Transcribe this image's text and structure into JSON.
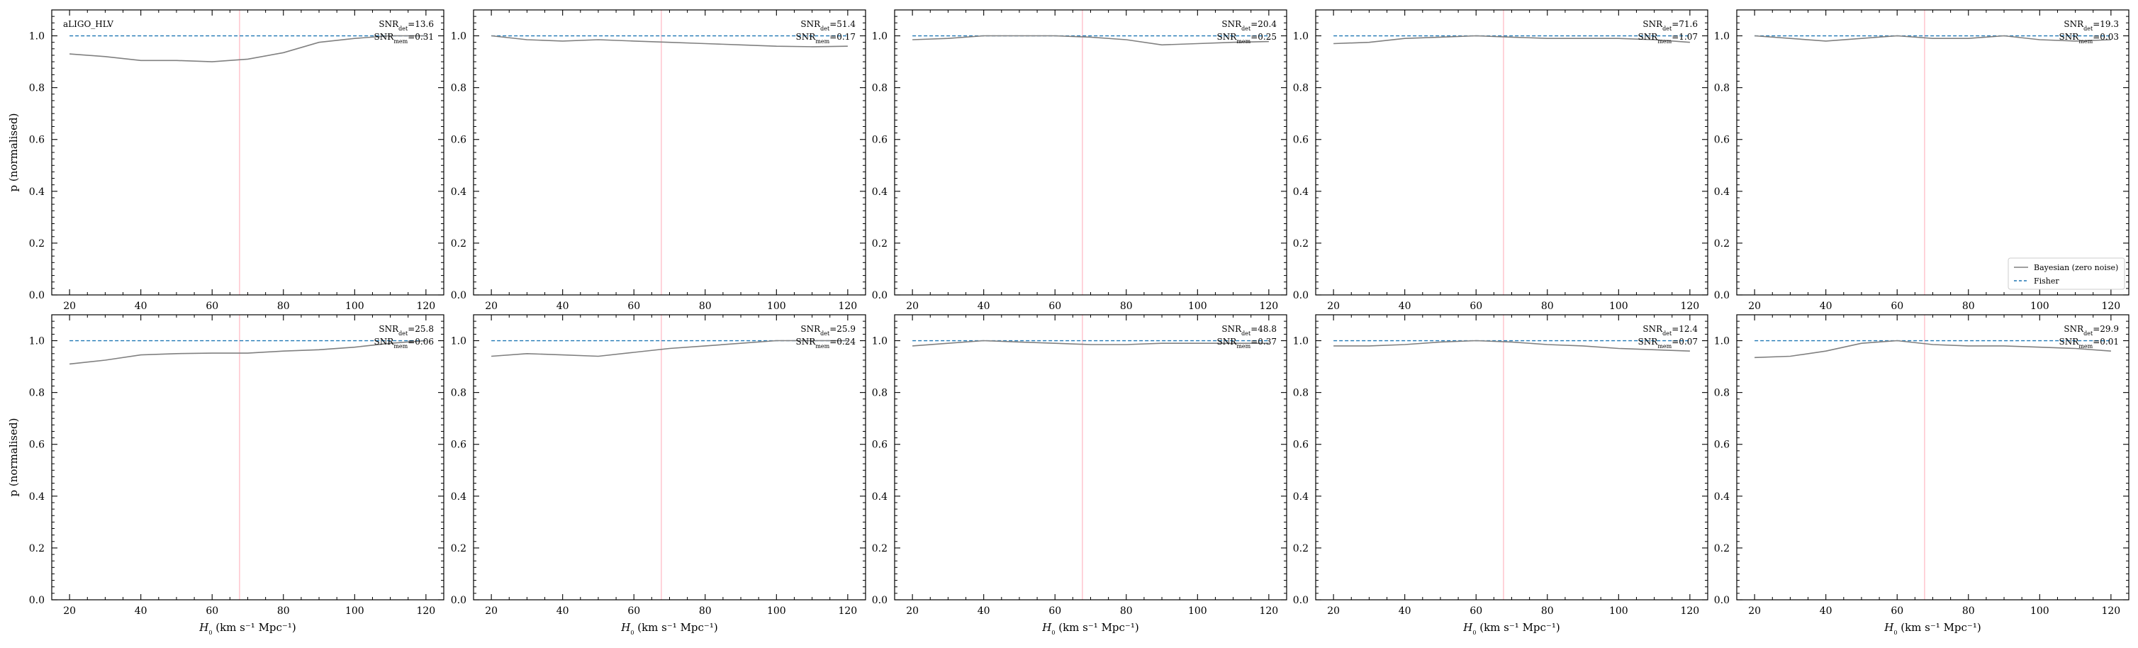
{
  "figure": {
    "detector_label": "aLIGO_HLV",
    "ylabel": "p (normalised)",
    "xlabel_prefix": "H",
    "xlabel_sub": "0",
    "xlabel_suffix": " (km s⁻¹ Mpc⁻¹)",
    "snr_det_prefix": "SNR",
    "snr_det_sub": "det",
    "snr_mem_prefix": "SNR",
    "snr_mem_sub": "mem",
    "legend": [
      "Bayesian (zero noise)",
      "Fisher"
    ],
    "colors": {
      "bayes": "#808080",
      "fisher": "#1f77b4",
      "truth": "#ffb6c1"
    }
  },
  "chart_data": [
    {
      "type": "line",
      "snr_det": "13.6",
      "snr_mem": "0.31",
      "x": [
        20,
        30,
        40,
        50,
        60,
        70,
        80,
        90,
        100,
        110,
        120
      ],
      "bayes": [
        0.93,
        0.92,
        0.905,
        0.905,
        0.9,
        0.91,
        0.935,
        0.975,
        0.99,
        1.0,
        1.0
      ],
      "fisher": 1.0,
      "truth_h0": 67.7,
      "xlim": [
        15,
        125
      ],
      "ylim": [
        0,
        1.1
      ],
      "xticks": [
        20,
        40,
        60,
        80,
        100,
        120
      ],
      "yticks": [
        0.0,
        0.2,
        0.4,
        0.6,
        0.8,
        1.0
      ]
    },
    {
      "type": "line",
      "snr_det": "51.4",
      "snr_mem": "0.17",
      "x": [
        20,
        30,
        40,
        50,
        60,
        70,
        80,
        90,
        100,
        110,
        120
      ],
      "bayes": [
        1.0,
        0.985,
        0.98,
        0.985,
        0.98,
        0.975,
        0.97,
        0.965,
        0.96,
        0.958,
        0.96
      ],
      "fisher": 1.0,
      "truth_h0": 67.7,
      "xlim": [
        15,
        125
      ],
      "ylim": [
        0,
        1.1
      ],
      "xticks": [
        20,
        40,
        60,
        80,
        100,
        120
      ],
      "yticks": [
        0.0,
        0.2,
        0.4,
        0.6,
        0.8,
        1.0
      ]
    },
    {
      "type": "line",
      "snr_det": "20.4",
      "snr_mem": "0.25",
      "x": [
        20,
        30,
        40,
        50,
        60,
        70,
        80,
        90,
        100,
        110,
        120
      ],
      "bayes": [
        0.985,
        0.99,
        1.0,
        1.0,
        1.0,
        0.995,
        0.985,
        0.965,
        0.97,
        0.975,
        0.978
      ],
      "fisher": 1.0,
      "truth_h0": 67.7,
      "xlim": [
        15,
        125
      ],
      "ylim": [
        0,
        1.1
      ],
      "xticks": [
        20,
        40,
        60,
        80,
        100,
        120
      ],
      "yticks": [
        0.0,
        0.2,
        0.4,
        0.6,
        0.8,
        1.0
      ]
    },
    {
      "type": "line",
      "snr_det": "71.6",
      "snr_mem": "1.07",
      "x": [
        20,
        30,
        40,
        50,
        60,
        70,
        80,
        90,
        100,
        110,
        120
      ],
      "bayes": [
        0.97,
        0.975,
        0.99,
        0.995,
        1.0,
        0.995,
        0.99,
        0.99,
        0.99,
        0.985,
        0.975
      ],
      "fisher": 1.0,
      "truth_h0": 67.7,
      "xlim": [
        15,
        125
      ],
      "ylim": [
        0,
        1.1
      ],
      "xticks": [
        20,
        40,
        60,
        80,
        100,
        120
      ],
      "yticks": [
        0.0,
        0.2,
        0.4,
        0.6,
        0.8,
        1.0
      ]
    },
    {
      "type": "line",
      "snr_det": "19.3",
      "snr_mem": "0.03",
      "x": [
        20,
        30,
        40,
        50,
        60,
        70,
        80,
        90,
        100,
        110,
        120
      ],
      "bayes": [
        1.0,
        0.99,
        0.98,
        0.99,
        1.0,
        0.99,
        0.99,
        1.0,
        0.985,
        0.98,
        0.985
      ],
      "fisher": 1.0,
      "truth_h0": 67.7,
      "xlim": [
        15,
        125
      ],
      "ylim": [
        0,
        1.1
      ],
      "xticks": [
        20,
        40,
        60,
        80,
        100,
        120
      ],
      "yticks": [
        0.0,
        0.2,
        0.4,
        0.6,
        0.8,
        1.0
      ]
    },
    {
      "type": "line",
      "snr_det": "25.8",
      "snr_mem": "0.06",
      "x": [
        20,
        30,
        40,
        50,
        60,
        70,
        80,
        90,
        100,
        110,
        120
      ],
      "bayes": [
        0.91,
        0.925,
        0.945,
        0.95,
        0.952,
        0.952,
        0.96,
        0.965,
        0.975,
        0.99,
        1.0
      ],
      "fisher": 1.0,
      "truth_h0": 67.7,
      "xlim": [
        15,
        125
      ],
      "ylim": [
        0,
        1.1
      ],
      "xticks": [
        20,
        40,
        60,
        80,
        100,
        120
      ],
      "yticks": [
        0.0,
        0.2,
        0.4,
        0.6,
        0.8,
        1.0
      ]
    },
    {
      "type": "line",
      "snr_det": "25.9",
      "snr_mem": "0.24",
      "x": [
        20,
        30,
        40,
        50,
        60,
        70,
        80,
        90,
        100,
        110,
        120
      ],
      "bayes": [
        0.94,
        0.95,
        0.945,
        0.94,
        0.955,
        0.97,
        0.98,
        0.99,
        1.0,
        1.0,
        1.0
      ],
      "fisher": 1.0,
      "truth_h0": 67.7,
      "xlim": [
        15,
        125
      ],
      "ylim": [
        0,
        1.1
      ],
      "xticks": [
        20,
        40,
        60,
        80,
        100,
        120
      ],
      "yticks": [
        0.0,
        0.2,
        0.4,
        0.6,
        0.8,
        1.0
      ]
    },
    {
      "type": "line",
      "snr_det": "48.8",
      "snr_mem": "0.37",
      "x": [
        20,
        30,
        40,
        50,
        60,
        70,
        80,
        90,
        100,
        110,
        120
      ],
      "bayes": [
        0.98,
        0.99,
        1.0,
        0.995,
        0.99,
        0.985,
        0.985,
        0.99,
        0.99,
        0.99,
        0.99
      ],
      "fisher": 1.0,
      "truth_h0": 67.7,
      "xlim": [
        15,
        125
      ],
      "ylim": [
        0,
        1.1
      ],
      "xticks": [
        20,
        40,
        60,
        80,
        100,
        120
      ],
      "yticks": [
        0.0,
        0.2,
        0.4,
        0.6,
        0.8,
        1.0
      ]
    },
    {
      "type": "line",
      "snr_det": "12.4",
      "snr_mem": "0.07",
      "x": [
        20,
        30,
        40,
        50,
        60,
        70,
        80,
        90,
        100,
        110,
        120
      ],
      "bayes": [
        0.98,
        0.98,
        0.985,
        0.995,
        1.0,
        0.995,
        0.985,
        0.98,
        0.97,
        0.965,
        0.96
      ],
      "fisher": 1.0,
      "truth_h0": 67.7,
      "xlim": [
        15,
        125
      ],
      "ylim": [
        0,
        1.1
      ],
      "xticks": [
        20,
        40,
        60,
        80,
        100,
        120
      ],
      "yticks": [
        0.0,
        0.2,
        0.4,
        0.6,
        0.8,
        1.0
      ]
    },
    {
      "type": "line",
      "snr_det": "29.9",
      "snr_mem": "0.01",
      "x": [
        20,
        30,
        40,
        50,
        60,
        70,
        80,
        90,
        100,
        110,
        120
      ],
      "bayes": [
        0.935,
        0.94,
        0.96,
        0.99,
        1.0,
        0.985,
        0.98,
        0.98,
        0.975,
        0.97,
        0.96
      ],
      "fisher": 1.0,
      "truth_h0": 67.7,
      "xlim": [
        15,
        125
      ],
      "ylim": [
        0,
        1.1
      ],
      "xticks": [
        20,
        40,
        60,
        80,
        100,
        120
      ],
      "yticks": [
        0.0,
        0.2,
        0.4,
        0.6,
        0.8,
        1.0
      ]
    }
  ]
}
